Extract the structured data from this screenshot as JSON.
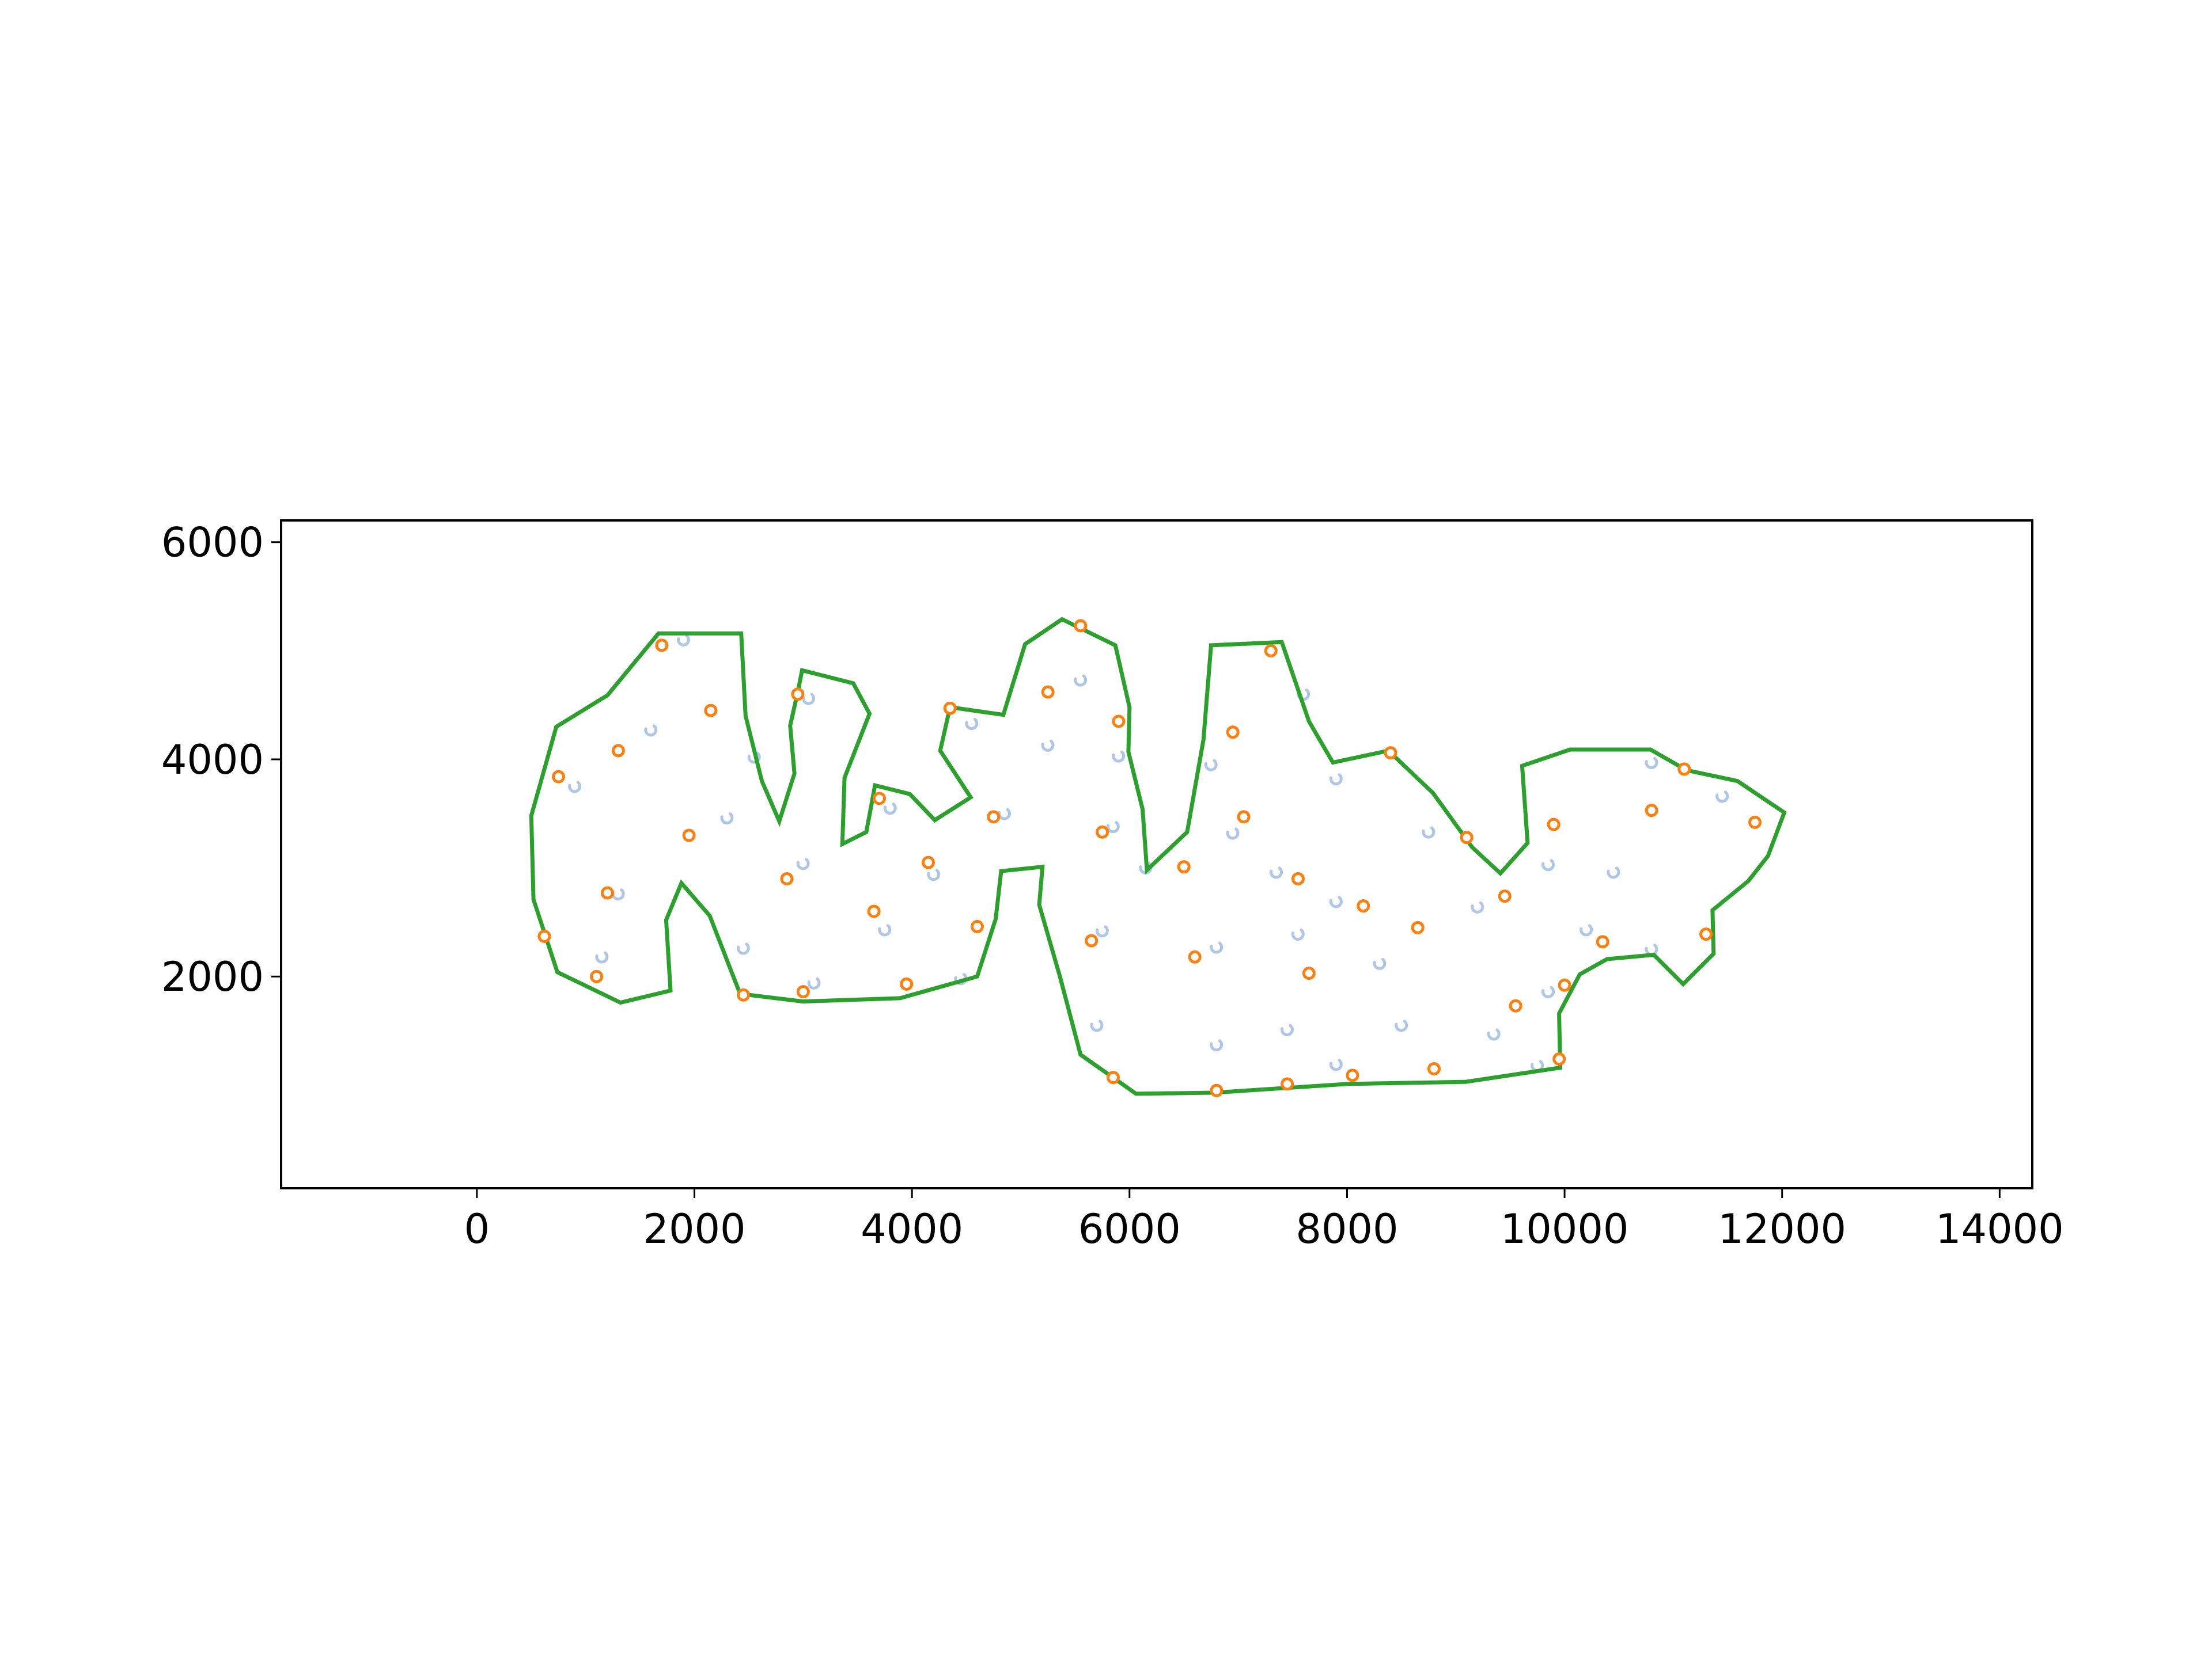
{
  "chart_data": {
    "type": "scatter",
    "title": "",
    "xlabel": "",
    "ylabel": "",
    "xlim": [
      -1800,
      14300
    ],
    "ylim": [
      50,
      6200
    ],
    "x_ticks": [
      0,
      2000,
      4000,
      6000,
      8000,
      10000,
      12000,
      14000
    ],
    "x_tick_labels": [
      "0",
      "2000",
      "4000",
      "6000",
      "8000",
      "10000",
      "12000",
      "14000"
    ],
    "y_ticks": [
      2000,
      4000,
      6000
    ],
    "y_tick_labels": [
      "2000",
      "4000",
      "6000"
    ],
    "grid": false,
    "legend": "none",
    "colors": {
      "outline": "#2ca02c",
      "points": "#ff7f0e",
      "hooks": "#aec7e8"
    },
    "series": [
      {
        "kind": "outline",
        "points": [
          [
            500,
            3480
          ],
          [
            730,
            4300
          ],
          [
            1200,
            4590
          ],
          [
            1670,
            5160
          ],
          [
            2430,
            5160
          ],
          [
            2470,
            4400
          ],
          [
            2620,
            3800
          ],
          [
            2780,
            3430
          ],
          [
            2920,
            3870
          ],
          [
            2880,
            4310
          ],
          [
            2950,
            4620
          ],
          [
            2990,
            4820
          ],
          [
            3460,
            4700
          ],
          [
            3610,
            4420
          ],
          [
            3380,
            3830
          ],
          [
            3360,
            3220
          ],
          [
            3580,
            3330
          ],
          [
            3660,
            3760
          ],
          [
            3980,
            3680
          ],
          [
            4210,
            3440
          ],
          [
            4540,
            3650
          ],
          [
            4260,
            4080
          ],
          [
            4350,
            4480
          ],
          [
            4840,
            4410
          ],
          [
            5040,
            5060
          ],
          [
            5380,
            5290
          ],
          [
            5870,
            5050
          ],
          [
            6000,
            4480
          ],
          [
            5990,
            4070
          ],
          [
            6120,
            3540
          ],
          [
            6160,
            2980
          ],
          [
            6530,
            3330
          ],
          [
            6680,
            4180
          ],
          [
            6750,
            5050
          ],
          [
            7400,
            5080
          ],
          [
            7650,
            4350
          ],
          [
            7870,
            3970
          ],
          [
            8380,
            4080
          ],
          [
            8790,
            3690
          ],
          [
            9150,
            3190
          ],
          [
            9410,
            2950
          ],
          [
            9660,
            3230
          ],
          [
            9610,
            3940
          ],
          [
            10050,
            4090
          ],
          [
            10790,
            4090
          ],
          [
            11120,
            3900
          ],
          [
            11590,
            3800
          ],
          [
            12020,
            3510
          ],
          [
            11870,
            3110
          ],
          [
            11690,
            2880
          ],
          [
            11360,
            2610
          ],
          [
            11370,
            2210
          ],
          [
            11090,
            1930
          ],
          [
            10820,
            2200
          ],
          [
            10390,
            2160
          ],
          [
            10140,
            2020
          ],
          [
            9950,
            1660
          ],
          [
            9960,
            1160
          ],
          [
            9090,
            1030
          ],
          [
            8000,
            1010
          ],
          [
            6780,
            930
          ],
          [
            6060,
            920
          ],
          [
            5550,
            1280
          ],
          [
            5360,
            2000
          ],
          [
            5170,
            2660
          ],
          [
            5200,
            3010
          ],
          [
            4820,
            2970
          ],
          [
            4770,
            2530
          ],
          [
            4600,
            2000
          ],
          [
            3890,
            1800
          ],
          [
            3000,
            1770
          ],
          [
            2420,
            1840
          ],
          [
            2140,
            2560
          ],
          [
            1880,
            2860
          ],
          [
            1740,
            2520
          ],
          [
            1780,
            1870
          ],
          [
            1320,
            1760
          ],
          [
            740,
            2040
          ],
          [
            520,
            2710
          ]
        ]
      },
      {
        "kind": "points",
        "points": [
          [
            1700,
            5050
          ],
          [
            2150,
            4450
          ],
          [
            1300,
            4080
          ],
          [
            750,
            3840
          ],
          [
            1950,
            3300
          ],
          [
            1200,
            2770
          ],
          [
            620,
            2370
          ],
          [
            1100,
            2000
          ],
          [
            2950,
            4600
          ],
          [
            2850,
            2900
          ],
          [
            2450,
            1830
          ],
          [
            3000,
            1860
          ],
          [
            3700,
            3640
          ],
          [
            4350,
            4470
          ],
          [
            4150,
            3050
          ],
          [
            3650,
            2600
          ],
          [
            3950,
            1930
          ],
          [
            4600,
            2460
          ],
          [
            4750,
            3470
          ],
          [
            5550,
            5230
          ],
          [
            5250,
            4620
          ],
          [
            5900,
            4350
          ],
          [
            5750,
            3330
          ],
          [
            5650,
            2330
          ],
          [
            5850,
            1070
          ],
          [
            6500,
            3010
          ],
          [
            6600,
            2180
          ],
          [
            6800,
            950
          ],
          [
            6950,
            4250
          ],
          [
            7050,
            3470
          ],
          [
            7300,
            5000
          ],
          [
            7550,
            2900
          ],
          [
            7650,
            2030
          ],
          [
            7450,
            1010
          ],
          [
            8050,
            1090
          ],
          [
            8150,
            2650
          ],
          [
            8400,
            4060
          ],
          [
            8650,
            2450
          ],
          [
            8800,
            1150
          ],
          [
            9100,
            3280
          ],
          [
            9450,
            2740
          ],
          [
            9550,
            1730
          ],
          [
            9900,
            3400
          ],
          [
            10000,
            1920
          ],
          [
            9950,
            1240
          ],
          [
            10350,
            2320
          ],
          [
            10800,
            3530
          ],
          [
            11100,
            3910
          ],
          [
            11300,
            2390
          ],
          [
            11750,
            3420
          ]
        ]
      },
      {
        "kind": "hooks",
        "points": [
          [
            1900,
            5100
          ],
          [
            1600,
            4270
          ],
          [
            900,
            3750
          ],
          [
            2300,
            3460
          ],
          [
            3000,
            3040
          ],
          [
            1300,
            2760
          ],
          [
            3050,
            4560
          ],
          [
            2550,
            4020
          ],
          [
            3800,
            3550
          ],
          [
            4550,
            4330
          ],
          [
            4200,
            2940
          ],
          [
            3750,
            2430
          ],
          [
            2450,
            2260
          ],
          [
            1150,
            2180
          ],
          [
            3100,
            1940
          ],
          [
            4450,
            1980
          ],
          [
            4850,
            3500
          ],
          [
            5550,
            4730
          ],
          [
            5250,
            4130
          ],
          [
            5900,
            4030
          ],
          [
            5850,
            3380
          ],
          [
            5750,
            2420
          ],
          [
            5700,
            1550
          ],
          [
            6750,
            3950
          ],
          [
            6950,
            3320
          ],
          [
            6800,
            2270
          ],
          [
            6150,
            3000
          ],
          [
            6800,
            1370
          ],
          [
            7450,
            1510
          ],
          [
            7350,
            2960
          ],
          [
            7550,
            2390
          ],
          [
            7600,
            4600
          ],
          [
            7900,
            3820
          ],
          [
            7900,
            2690
          ],
          [
            8300,
            2120
          ],
          [
            8500,
            1550
          ],
          [
            7900,
            1190
          ],
          [
            8750,
            3330
          ],
          [
            9200,
            2640
          ],
          [
            9350,
            1470
          ],
          [
            9850,
            3030
          ],
          [
            9750,
            1180
          ],
          [
            9850,
            1860
          ],
          [
            10200,
            2430
          ],
          [
            10450,
            2960
          ],
          [
            10800,
            2250
          ],
          [
            10800,
            3970
          ],
          [
            11450,
            3660
          ]
        ]
      }
    ]
  }
}
